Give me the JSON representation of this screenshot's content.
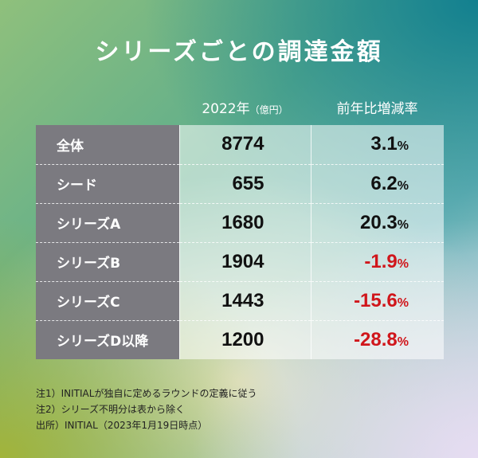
{
  "title": "シリーズごとの調達金額",
  "colors": {
    "label_bg": "#7b7a80",
    "negative": "#d0161b",
    "positive": "#111111"
  },
  "chart_data": {
    "type": "table",
    "title": "シリーズごとの調達金額",
    "columns": [
      "",
      "2022年",
      "（億円）",
      "前年比増減率"
    ],
    "rows": [
      {
        "label": "全体",
        "amount": "8774",
        "change": "3.1",
        "negative": false
      },
      {
        "label": "シード",
        "amount": "655",
        "change": "6.2",
        "negative": false
      },
      {
        "label": "シリーズA",
        "amount": "1680",
        "change": "20.3",
        "negative": false
      },
      {
        "label": "シリーズB",
        "amount": "1904",
        "change": "-1.9",
        "negative": true
      },
      {
        "label": "シリーズC",
        "amount": "1443",
        "change": "-15.6",
        "negative": true
      },
      {
        "label": "シリーズD以降",
        "amount": "1200",
        "change": "-28.8",
        "negative": true
      }
    ],
    "unit_percent": "%"
  },
  "notes": [
    "注1）INITIALが独自に定めるラウンドの定義に従う",
    "注2）シリーズ不明分は表から除く",
    "出所）INITIAL（2023年1月19日時点）"
  ]
}
